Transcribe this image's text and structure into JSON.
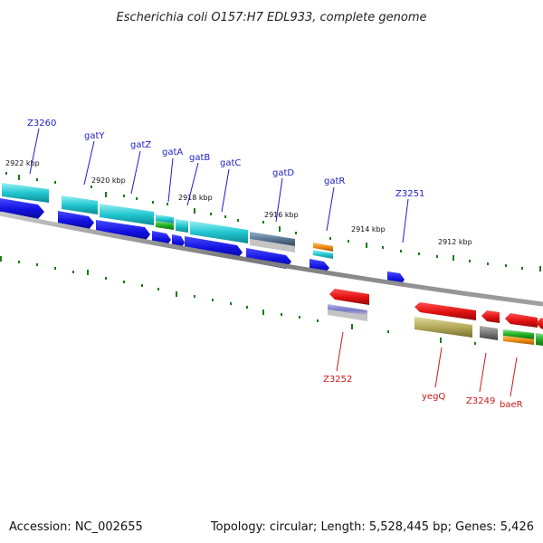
{
  "title": "Escherichia coli O157:H7 EDL933, complete genome",
  "footer": {
    "accession": "Accession: NC_002655",
    "summary": "Topology: circular; Length: 5,528,445 bp; Genes: 5,426"
  },
  "scale_labels": [
    "2922 kbp",
    "2920 kbp",
    "2918 kbp",
    "2916 kbp",
    "2914 kbp",
    "2912 kbp"
  ],
  "genes_top": [
    {
      "name": "Z3260",
      "color": "#1d1dc8"
    },
    {
      "name": "gatY",
      "color": "#1d1dc8"
    },
    {
      "name": "gatZ",
      "color": "#1d1dc8"
    },
    {
      "name": "gatA",
      "color": "#1d1dc8"
    },
    {
      "name": "gatB",
      "color": "#1d1dc8"
    },
    {
      "name": "gatC",
      "color": "#1d1dc8"
    },
    {
      "name": "gatD",
      "color": "#1d1dc8"
    },
    {
      "name": "gatR",
      "color": "#1d1dc8"
    },
    {
      "name": "Z3251",
      "color": "#1d1dc8"
    }
  ],
  "genes_bottom": [
    {
      "name": "Z3252",
      "color": "#cc1a1a"
    },
    {
      "name": "yegQ",
      "color": "#cc1a1a"
    },
    {
      "name": "Z3249",
      "color": "#cc1a1a"
    },
    {
      "name": "baeR",
      "color": "#cc1a1a"
    }
  ],
  "colors": {
    "forward_cds": "#1414e6",
    "reverse_cds": "#e61414",
    "backbone": "#808080",
    "ticks": "#1a7a1a",
    "cog_cyan": "#22c8d2",
    "cog_green": "#22b022",
    "cog_orange": "#f08a10",
    "cog_slate": "#5a7896",
    "cog_olive": "#b4aa5a",
    "cog_purple": "#7878c8",
    "cog_gray": "#787878"
  }
}
